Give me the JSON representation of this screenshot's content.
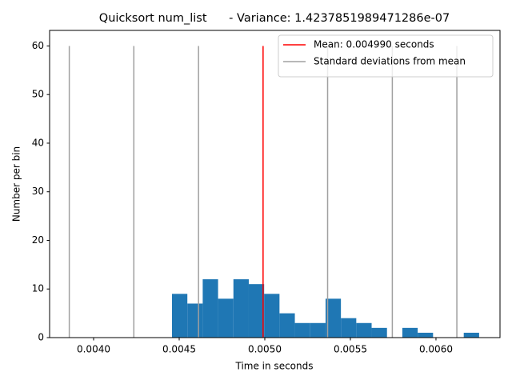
{
  "chart_data": {
    "type": "histogram",
    "title": "Quicksort num_list      - Variance: 1.4237851989471286e-07",
    "x_label": "Time in seconds",
    "y_label": "Number per bin",
    "bins": [
      0.004458,
      0.0045477,
      0.0046374,
      0.0047271,
      0.0048168,
      0.0049065,
      0.0049962,
      0.0050859,
      0.0051756,
      0.0052653,
      0.005355,
      0.0054447,
      0.0055344,
      0.0056241,
      0.0057138,
      0.0058035,
      0.0058932,
      0.0059829,
      0.0060726,
      0.0061623,
      0.006252
    ],
    "counts": [
      9,
      7,
      12,
      8,
      12,
      11,
      9,
      5,
      3,
      3,
      8,
      4,
      3,
      2,
      0,
      2,
      1,
      0,
      0,
      1
    ],
    "color": "#1f77b4",
    "reference_lines": [
      {
        "name": "Mean: 0.004990 seconds",
        "color": "#ff0000",
        "x": [
          0.00499
        ],
        "ymax": 60
      },
      {
        "name": "Standard deviations from mean",
        "color": "#a0a0a0",
        "x": [
          0.003858,
          0.004235,
          0.004613,
          0.005367,
          0.005745,
          0.006122
        ],
        "ymax": 60
      }
    ],
    "xlim": [
      0.003743,
      0.006374
    ],
    "ylim": [
      0,
      63.2
    ],
    "xticks": [
      {
        "value": 0.004,
        "label": "0.0040"
      },
      {
        "value": 0.0045,
        "label": "0.0045"
      },
      {
        "value": 0.005,
        "label": "0.0050"
      },
      {
        "value": 0.0055,
        "label": "0.0055"
      },
      {
        "value": 0.006,
        "label": "0.0060"
      }
    ],
    "yticks": [
      0,
      10,
      20,
      30,
      40,
      50,
      60
    ],
    "legend_position": "upper right"
  }
}
